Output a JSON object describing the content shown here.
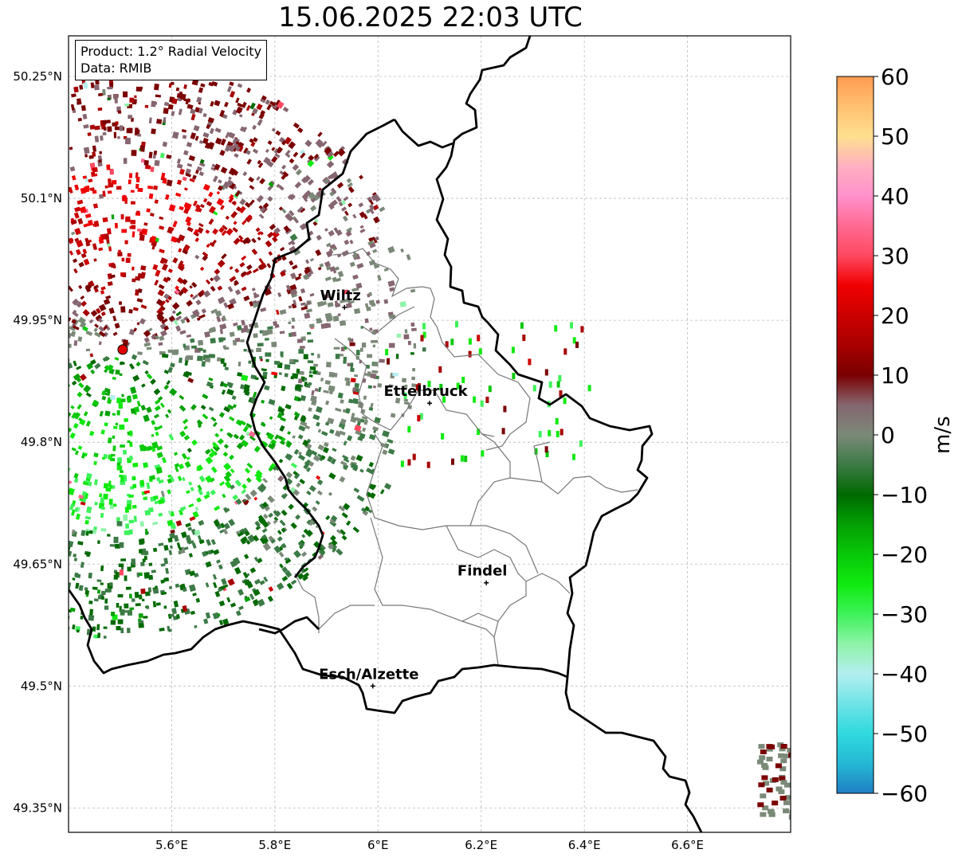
{
  "title": "15.06.2025 22:03 UTC",
  "info": {
    "product": "Product: 1.2° Radial Velocity",
    "data": "Data: RMIB"
  },
  "map": {
    "lon_range": [
      5.4,
      6.8
    ],
    "lat_range": [
      49.32,
      50.3
    ],
    "x_ticks": [
      {
        "value": 5.6,
        "label": "5.6°E"
      },
      {
        "value": 5.8,
        "label": "5.8°E"
      },
      {
        "value": 6.0,
        "label": "6°E"
      },
      {
        "value": 6.2,
        "label": "6.2°E"
      },
      {
        "value": 6.4,
        "label": "6.4°E"
      },
      {
        "value": 6.6,
        "label": "6.6°E"
      }
    ],
    "y_ticks": [
      {
        "value": 50.25,
        "label": "50.25°N"
      },
      {
        "value": 50.1,
        "label": "50.1°N"
      },
      {
        "value": 49.95,
        "label": "49.95°N"
      },
      {
        "value": 49.8,
        "label": "49.8°N"
      },
      {
        "value": 49.65,
        "label": "49.65°N"
      },
      {
        "value": 49.5,
        "label": "49.5°N"
      },
      {
        "value": 49.35,
        "label": "49.35°N"
      }
    ],
    "grid": true,
    "radar_site": {
      "lon": 5.505,
      "lat": 49.914,
      "color": "#e00000"
    },
    "cities": [
      {
        "name": "Wiltz",
        "lon": 5.935,
        "lat": 49.966
      },
      {
        "name": "Ettelbruck",
        "lon": 6.1,
        "lat": 49.848
      },
      {
        "name": "Findel",
        "lon": 6.21,
        "lat": 49.627
      },
      {
        "name": "Esch/Alzette",
        "lon": 5.99,
        "lat": 49.5
      }
    ]
  },
  "colorbar": {
    "label": "m/s",
    "min": -60,
    "max": 60,
    "ticks": [
      {
        "value": 60,
        "label": "60"
      },
      {
        "value": 50,
        "label": "50"
      },
      {
        "value": 40,
        "label": "40"
      },
      {
        "value": 30,
        "label": "30"
      },
      {
        "value": 20,
        "label": "20"
      },
      {
        "value": 10,
        "label": "10"
      },
      {
        "value": 0,
        "label": "0"
      },
      {
        "value": -10,
        "label": "−10"
      },
      {
        "value": -20,
        "label": "−20"
      },
      {
        "value": -30,
        "label": "−30"
      },
      {
        "value": -40,
        "label": "−40"
      },
      {
        "value": -50,
        "label": "−50"
      },
      {
        "value": -60,
        "label": "−60"
      }
    ],
    "stops": [
      {
        "value": -60,
        "color": "#1f7fc4"
      },
      {
        "value": -55,
        "color": "#25b8d4"
      },
      {
        "value": -50,
        "color": "#2fd9de"
      },
      {
        "value": -45,
        "color": "#6fe3e6"
      },
      {
        "value": -40,
        "color": "#b4eef0"
      },
      {
        "value": -35,
        "color": "#8ef3a8"
      },
      {
        "value": -30,
        "color": "#3df25a"
      },
      {
        "value": -25,
        "color": "#10ea10"
      },
      {
        "value": -20,
        "color": "#08c808"
      },
      {
        "value": -15,
        "color": "#04a004"
      },
      {
        "value": -10,
        "color": "#006a00"
      },
      {
        "value": -5,
        "color": "#3c7a46"
      },
      {
        "value": 0,
        "color": "#7b8a78"
      },
      {
        "value": 5,
        "color": "#866670"
      },
      {
        "value": 10,
        "color": "#7a0000"
      },
      {
        "value": 15,
        "color": "#a80000"
      },
      {
        "value": 20,
        "color": "#cc0000"
      },
      {
        "value": 25,
        "color": "#f00000"
      },
      {
        "value": 30,
        "color": "#ff4860"
      },
      {
        "value": 35,
        "color": "#ff6a92"
      },
      {
        "value": 40,
        "color": "#ff90cc"
      },
      {
        "value": 45,
        "color": "#ffb0c0"
      },
      {
        "value": 50,
        "color": "#ffe090"
      },
      {
        "value": 55,
        "color": "#ffc070"
      },
      {
        "value": 60,
        "color": "#ff9a50"
      }
    ]
  }
}
